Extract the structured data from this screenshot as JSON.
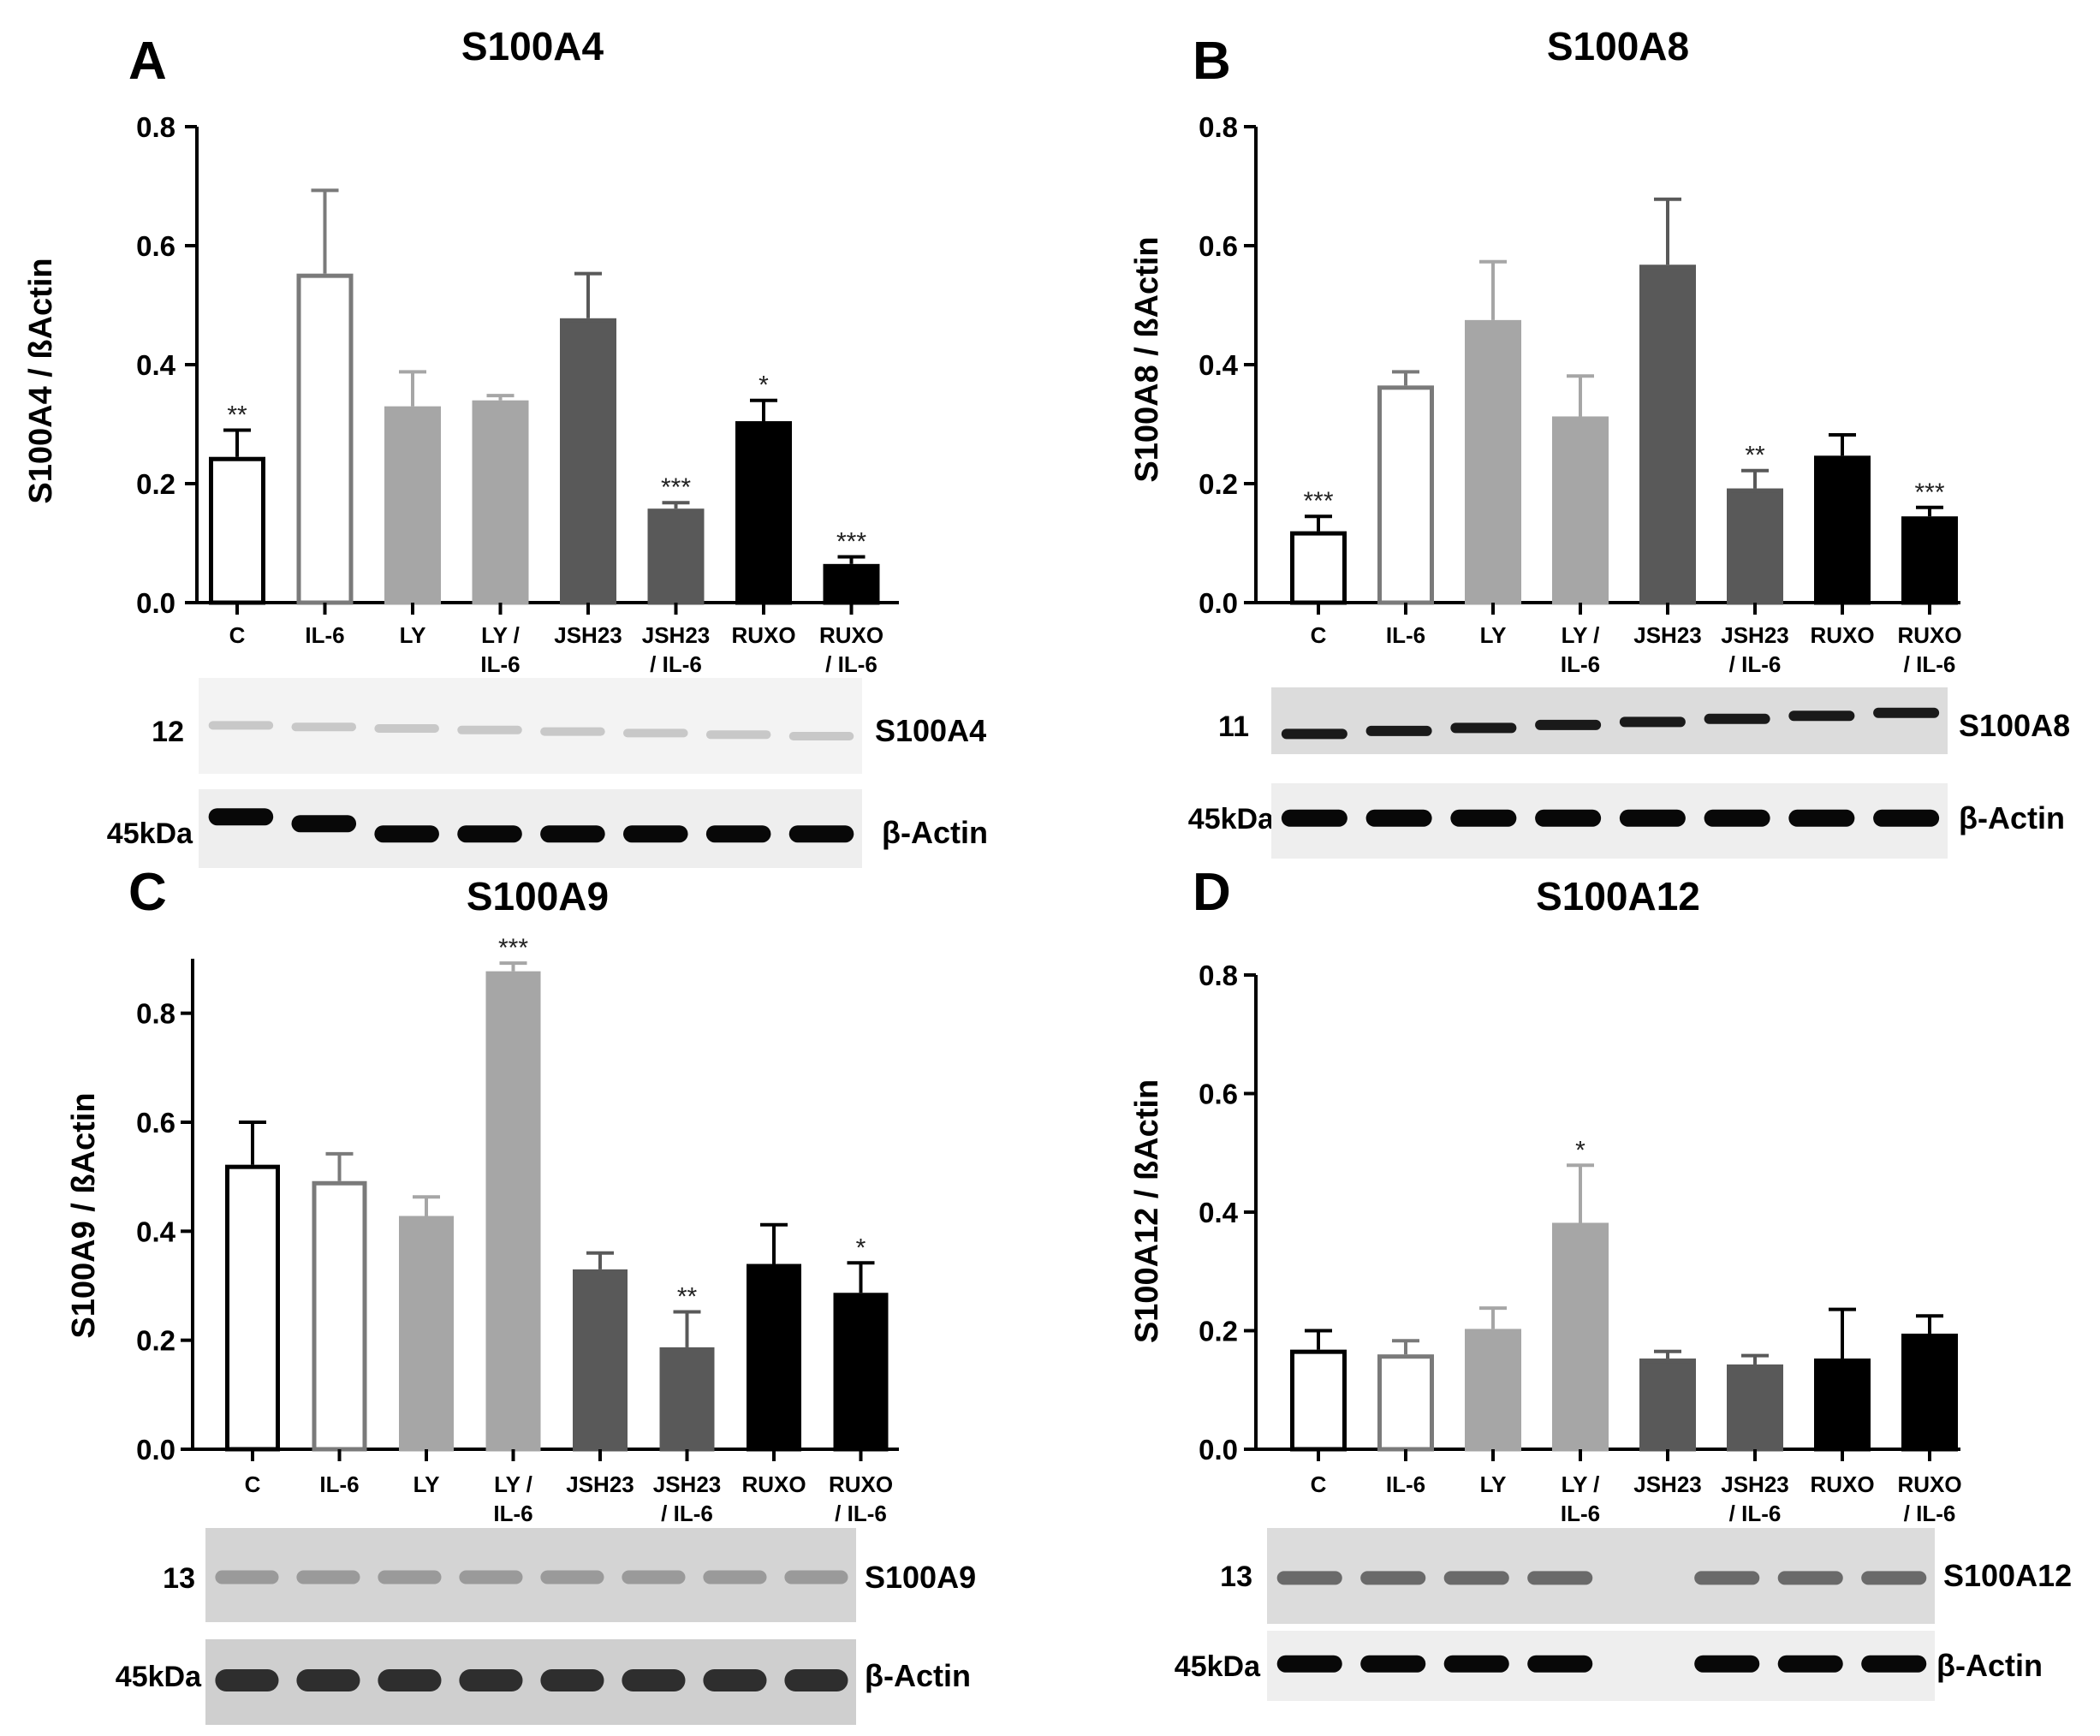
{
  "colors": {
    "control": "#000000",
    "il6": "#7a7a7a",
    "ly": "#a6a6a6",
    "jsh": "#595959",
    "ruxo": "#000000",
    "white": "#ffffff"
  },
  "chart_data": [
    {
      "panel": "A",
      "type": "bar",
      "title": "S100A4",
      "ylabel": "S100A4 / ßActin",
      "xlabel": "",
      "ylim": [
        0,
        0.8
      ],
      "yticks": [
        "0.0",
        "0.2",
        "0.4",
        "0.6",
        "0.8"
      ],
      "categories": [
        {
          "l1": "C",
          "l2": ""
        },
        {
          "l1": "IL-6",
          "l2": ""
        },
        {
          "l1": "LY",
          "l2": ""
        },
        {
          "l1": "LY /",
          "l2": "IL-6"
        },
        {
          "l1": "JSH23",
          "l2": ""
        },
        {
          "l1": "JSH23",
          "l2": "/ IL-6"
        },
        {
          "l1": "RUXO",
          "l2": ""
        },
        {
          "l1": "RUXO",
          "l2": "/ IL-6"
        }
      ],
      "values": [
        0.245,
        0.553,
        0.33,
        0.34,
        0.478,
        0.158,
        0.305,
        0.065
      ],
      "errors": [
        0.045,
        0.14,
        0.058,
        0.008,
        0.075,
        0.01,
        0.035,
        0.012
      ],
      "significance": [
        "**",
        "",
        "",
        "",
        "",
        "***",
        "*",
        "***"
      ],
      "blot": {
        "protein_kda": "12",
        "protein_label": "S100A4",
        "actin_kda": "45kDa",
        "actin_label": "β-Actin"
      }
    },
    {
      "panel": "B",
      "type": "bar",
      "title": "S100A8",
      "ylabel": "S100A8 / ßActin",
      "xlabel": "",
      "ylim": [
        0,
        0.8
      ],
      "yticks": [
        "0.0",
        "0.2",
        "0.4",
        "0.6",
        "0.8"
      ],
      "categories": [
        {
          "l1": "C",
          "l2": ""
        },
        {
          "l1": "IL-6",
          "l2": ""
        },
        {
          "l1": "LY",
          "l2": ""
        },
        {
          "l1": "LY /",
          "l2": "IL-6"
        },
        {
          "l1": "JSH23",
          "l2": ""
        },
        {
          "l1": "JSH23",
          "l2": "/ IL-6"
        },
        {
          "l1": "RUXO",
          "l2": ""
        },
        {
          "l1": "RUXO",
          "l2": "/ IL-6"
        }
      ],
      "values": [
        0.12,
        0.365,
        0.475,
        0.313,
        0.568,
        0.192,
        0.247,
        0.145
      ],
      "errors": [
        0.025,
        0.023,
        0.098,
        0.068,
        0.11,
        0.03,
        0.035,
        0.015
      ],
      "significance": [
        "***",
        "",
        "",
        "",
        "",
        "**",
        "",
        "***"
      ],
      "blot": {
        "protein_kda": "11",
        "protein_label": "S100A8",
        "actin_kda": "45kDa",
        "actin_label": "β-Actin"
      }
    },
    {
      "panel": "C",
      "type": "bar",
      "title": "S100A9",
      "ylabel": "S100A9 / ßActin",
      "xlabel": "",
      "ylim": [
        0,
        0.9
      ],
      "yticks": [
        "0.0",
        "0.2",
        "0.4",
        "0.6",
        "0.8"
      ],
      "categories": [
        {
          "l1": "C",
          "l2": ""
        },
        {
          "l1": "IL-6",
          "l2": ""
        },
        {
          "l1": "LY",
          "l2": ""
        },
        {
          "l1": "LY /",
          "l2": "IL-6"
        },
        {
          "l1": "JSH23",
          "l2": ""
        },
        {
          "l1": "JSH23",
          "l2": "/ IL-6"
        },
        {
          "l1": "RUXO",
          "l2": ""
        },
        {
          "l1": "RUXO",
          "l2": "/ IL-6"
        }
      ],
      "values": [
        0.522,
        0.492,
        0.428,
        0.877,
        0.33,
        0.187,
        0.34,
        0.287
      ],
      "errors": [
        0.078,
        0.05,
        0.035,
        0.015,
        0.03,
        0.065,
        0.072,
        0.055
      ],
      "significance": [
        "",
        "",
        "",
        "***",
        "",
        "**",
        "",
        "*"
      ],
      "blot": {
        "protein_kda": "13",
        "protein_label": "S100A9",
        "actin_kda": "45kDa",
        "actin_label": "β-Actin"
      }
    },
    {
      "panel": "D",
      "type": "bar",
      "title": "S100A12",
      "ylabel": "S100A12 / ßActin",
      "xlabel": "",
      "ylim": [
        0,
        0.8
      ],
      "yticks": [
        "0.0",
        "0.2",
        "0.4",
        "0.6",
        "0.8"
      ],
      "categories": [
        {
          "l1": "C",
          "l2": ""
        },
        {
          "l1": "IL-6",
          "l2": ""
        },
        {
          "l1": "LY",
          "l2": ""
        },
        {
          "l1": "LY /",
          "l2": "IL-6"
        },
        {
          "l1": "JSH23",
          "l2": ""
        },
        {
          "l1": "JSH23",
          "l2": "/ IL-6"
        },
        {
          "l1": "RUXO",
          "l2": ""
        },
        {
          "l1": "RUXO",
          "l2": "/ IL-6"
        }
      ],
      "values": [
        0.168,
        0.16,
        0.203,
        0.382,
        0.153,
        0.143,
        0.153,
        0.195
      ],
      "errors": [
        0.032,
        0.023,
        0.035,
        0.097,
        0.012,
        0.015,
        0.083,
        0.03
      ],
      "significance": [
        "",
        "",
        "",
        "*",
        "",
        "",
        "",
        ""
      ],
      "blot": {
        "protein_kda": "13",
        "protein_label": "S100A12",
        "actin_kda": "45kDa",
        "actin_label": "β-Actin"
      }
    }
  ]
}
